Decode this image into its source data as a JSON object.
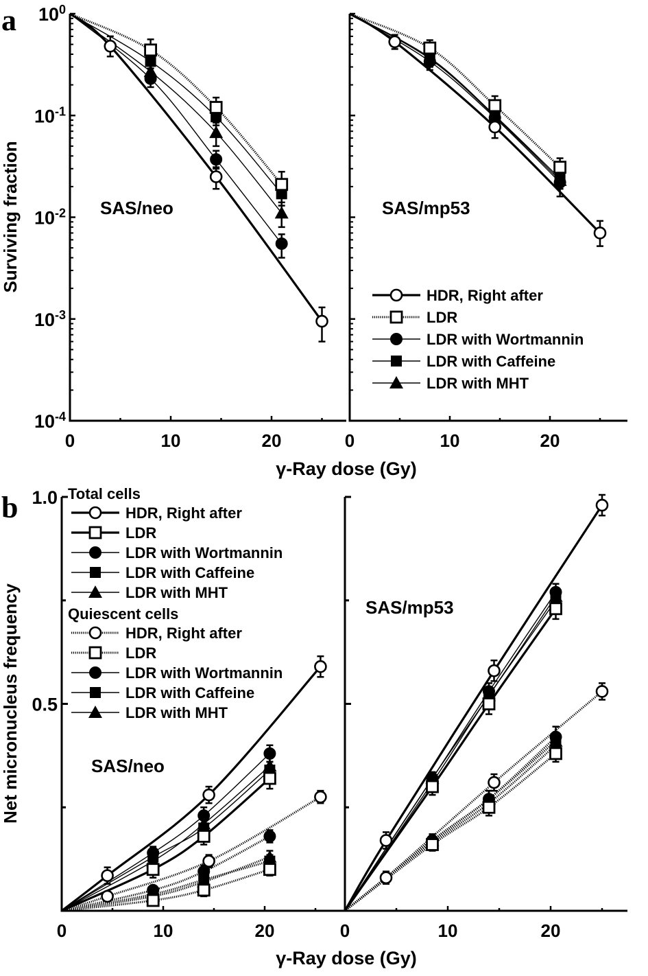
{
  "figure": {
    "panel_a_letter": "a",
    "panel_b_letter": "b"
  },
  "chart_data": [
    {
      "type": "line",
      "panel": "a",
      "subplot": "SAS/neo",
      "title": "SAS/neo",
      "xlabel": "γ-Ray dose (Gy)",
      "ylabel": "Surviving fraction",
      "yscale": "log",
      "xlim": [
        0,
        28
      ],
      "ylim": [
        0.0001,
        1
      ],
      "xticks": [
        "0",
        "10",
        "20"
      ],
      "yticks": [
        {
          "base": "10",
          "exp": "0"
        },
        {
          "base": "10",
          "exp": "-1"
        },
        {
          "base": "10",
          "exp": "-2"
        },
        {
          "base": "10",
          "exp": "-3"
        },
        {
          "base": "10",
          "exp": "-4"
        }
      ],
      "series": [
        {
          "name": "HDR, Right after",
          "marker": "open-circle",
          "line": "thick-solid",
          "x": [
            0,
            4,
            14.5,
            25
          ],
          "y": [
            1,
            0.48,
            0.025,
            0.00095
          ],
          "yerr_upper": [
            0,
            0.6,
            0.031,
            0.0013
          ],
          "yerr_lower": [
            0,
            0.38,
            0.019,
            0.0006
          ]
        },
        {
          "name": "LDR",
          "marker": "open-square",
          "line": "dotted",
          "x": [
            0,
            8,
            14.5,
            21
          ],
          "y": [
            1,
            0.44,
            0.12,
            0.021
          ],
          "yerr_upper": [
            0,
            0.56,
            0.15,
            0.028
          ],
          "yerr_lower": [
            0,
            0.36,
            0.1,
            0.017
          ]
        },
        {
          "name": "LDR with Wortmannin",
          "marker": "filled-circle",
          "line": "thin-solid",
          "x": [
            0,
            8,
            14.5,
            21
          ],
          "y": [
            1,
            0.23,
            0.037,
            0.0055
          ],
          "yerr_upper": [
            0,
            0.27,
            0.045,
            0.0068
          ],
          "yerr_lower": [
            0,
            0.19,
            0.03,
            0.004
          ]
        },
        {
          "name": "LDR with Caffeine",
          "marker": "filled-square",
          "line": "thin-solid",
          "x": [
            0,
            8,
            14.5,
            21
          ],
          "y": [
            1,
            0.34,
            0.097,
            0.017
          ],
          "yerr_upper": [
            0,
            0.4,
            0.12,
            0.022
          ],
          "yerr_lower": [
            0,
            0.29,
            0.08,
            0.013
          ]
        },
        {
          "name": "LDR with MHT",
          "marker": "filled-triangle",
          "line": "thin-solid",
          "x": [
            0,
            8,
            14.5,
            21
          ],
          "y": [
            1,
            0.27,
            0.068,
            0.011
          ],
          "yerr_upper": [
            0,
            0.32,
            0.085,
            0.014
          ],
          "yerr_lower": [
            0,
            0.23,
            0.05,
            0.008
          ]
        }
      ]
    },
    {
      "type": "line",
      "panel": "a",
      "subplot": "SAS/mp53",
      "title": "SAS/mp53",
      "xlabel": "γ-Ray dose (Gy)",
      "yscale": "log",
      "xlim": [
        0,
        28
      ],
      "ylim": [
        0.0001,
        1
      ],
      "xticks": [
        "0",
        "10",
        "20"
      ],
      "legend": {
        "position": "lower-center",
        "entries": [
          {
            "label": "HDR, Right after",
            "marker": "open-circle",
            "line": "thick-solid"
          },
          {
            "label": "LDR",
            "marker": "open-square",
            "line": "dotted"
          },
          {
            "label": "LDR with Wortmannin",
            "marker": "filled-circle",
            "line": "thin-solid"
          },
          {
            "label": "LDR with Caffeine",
            "marker": "filled-square",
            "line": "thin-solid"
          },
          {
            "label": "LDR with MHT",
            "marker": "filled-triangle",
            "line": "thin-solid"
          }
        ]
      },
      "series": [
        {
          "name": "HDR, Right after",
          "marker": "open-circle",
          "line": "thick-solid",
          "x": [
            0,
            4.5,
            14.5,
            25
          ],
          "y": [
            1,
            0.53,
            0.077,
            0.007
          ],
          "yerr_upper": [
            0,
            0.62,
            0.095,
            0.0092
          ],
          "yerr_lower": [
            0,
            0.45,
            0.06,
            0.0052
          ]
        },
        {
          "name": "LDR",
          "marker": "open-square",
          "line": "dotted",
          "x": [
            0,
            8,
            14.5,
            21
          ],
          "y": [
            1,
            0.46,
            0.125,
            0.031
          ],
          "yerr_upper": [
            0,
            0.55,
            0.155,
            0.038
          ],
          "yerr_lower": [
            0,
            0.38,
            0.1,
            0.025
          ]
        },
        {
          "name": "LDR with Wortmannin",
          "marker": "filled-circle",
          "line": "thin-solid",
          "x": [
            0,
            8,
            14.5,
            21
          ],
          "y": [
            1,
            0.34,
            0.095,
            0.022
          ],
          "yerr_upper": [
            0,
            0.4,
            0.11,
            0.026
          ],
          "yerr_lower": [
            0,
            0.28,
            0.08,
            0.016
          ]
        },
        {
          "name": "LDR with Caffeine",
          "marker": "filled-square",
          "line": "thin-solid",
          "x": [
            0,
            8,
            14.5,
            21
          ],
          "y": [
            1,
            0.37,
            0.1,
            0.024
          ],
          "yerr_upper": [
            0,
            0.43,
            0.12,
            0.028
          ],
          "yerr_lower": [
            0,
            0.31,
            0.085,
            0.02
          ]
        },
        {
          "name": "LDR with MHT",
          "marker": "filled-triangle",
          "line": "thin-solid",
          "x": [
            0,
            8,
            14.5,
            21
          ],
          "y": [
            1,
            0.36,
            0.098,
            0.023
          ],
          "yerr_upper": [
            0,
            0.42,
            0.115,
            0.027
          ],
          "yerr_lower": [
            0,
            0.3,
            0.082,
            0.019
          ]
        }
      ]
    },
    {
      "type": "line",
      "panel": "b",
      "subplot": "SAS/neo",
      "title": "SAS/neo",
      "xlabel": "γ-Ray dose (Gy)",
      "ylabel": "Net micronucleus frequency",
      "xlim": [
        0,
        28
      ],
      "ylim": [
        0,
        1.0
      ],
      "xticks": [
        "0",
        "10",
        "20"
      ],
      "yticks": [
        "1.0",
        "0.5"
      ],
      "legend": {
        "position": "top-left",
        "groups": [
          {
            "title": "Total cells",
            "entries": [
              {
                "label": "HDR, Right after",
                "marker": "open-circle",
                "line": "thick-solid"
              },
              {
                "label": "LDR",
                "marker": "open-square",
                "line": "thick-solid"
              },
              {
                "label": "LDR with Wortmannin",
                "marker": "filled-circle",
                "line": "thin-solid"
              },
              {
                "label": "LDR with Caffeine",
                "marker": "filled-square",
                "line": "thin-solid"
              },
              {
                "label": "LDR with MHT",
                "marker": "filled-triangle",
                "line": "thin-solid"
              }
            ]
          },
          {
            "title": "Quiescent cells",
            "entries": [
              {
                "label": "HDR, Right after",
                "marker": "open-circle",
                "line": "dotted"
              },
              {
                "label": "LDR",
                "marker": "open-square",
                "line": "dotted"
              },
              {
                "label": "LDR with Wortmannin",
                "marker": "filled-circle",
                "line": "thin-solid"
              },
              {
                "label": "LDR with Caffeine",
                "marker": "filled-square",
                "line": "thin-solid"
              },
              {
                "label": "LDR with MHT",
                "marker": "filled-triangle",
                "line": "thin-solid"
              }
            ]
          }
        ]
      },
      "series": [
        {
          "name": "Total cells - HDR, Right after",
          "marker": "open-circle",
          "line": "thick-solid",
          "x": [
            0,
            4.5,
            14.5,
            25.5
          ],
          "y": [
            0,
            0.085,
            0.28,
            0.59
          ],
          "err": [
            0,
            0.02,
            0.02,
            0.025
          ]
        },
        {
          "name": "Total cells - LDR",
          "marker": "open-square",
          "line": "thick-solid",
          "x": [
            0,
            9,
            14,
            20.5
          ],
          "y": [
            0,
            0.1,
            0.18,
            0.32
          ],
          "err": [
            0,
            0.02,
            0.02,
            0.025
          ]
        },
        {
          "name": "Total cells - LDR with Wortmannin",
          "marker": "filled-circle",
          "line": "thin-solid",
          "x": [
            0,
            9,
            14,
            20.5
          ],
          "y": [
            0,
            0.14,
            0.23,
            0.38
          ],
          "err": [
            0,
            0.015,
            0.02,
            0.02
          ]
        },
        {
          "name": "Total cells - LDR with Caffeine",
          "marker": "filled-square",
          "line": "thin-solid",
          "x": [
            0,
            9,
            14,
            20.5
          ],
          "y": [
            0,
            0.13,
            0.2,
            0.34
          ],
          "err": [
            0,
            0.015,
            0.02,
            0.02
          ]
        },
        {
          "name": "Total cells - LDR with MHT",
          "marker": "filled-triangle",
          "line": "thin-solid",
          "x": [
            0,
            9,
            14,
            20.5
          ],
          "y": [
            0,
            0.12,
            0.21,
            0.35
          ],
          "err": [
            0,
            0.015,
            0.02,
            0.02
          ]
        },
        {
          "name": "Quiescent cells - HDR, Right after",
          "marker": "open-circle",
          "line": "dotted",
          "x": [
            0,
            4.5,
            14.5,
            25.5
          ],
          "y": [
            0,
            0.035,
            0.12,
            0.275
          ],
          "err": [
            0,
            0.01,
            0.015,
            0.015
          ]
        },
        {
          "name": "Quiescent cells - LDR",
          "marker": "open-square",
          "line": "dotted",
          "x": [
            0,
            9,
            14,
            20.5
          ],
          "y": [
            0,
            0.025,
            0.05,
            0.1
          ],
          "err": [
            0,
            0.01,
            0.015,
            0.015
          ]
        },
        {
          "name": "Quiescent cells - LDR with Wortmannin",
          "marker": "filled-circle",
          "line": "dotted",
          "x": [
            0,
            9,
            14,
            20.5
          ],
          "y": [
            0,
            0.05,
            0.095,
            0.18
          ],
          "err": [
            0,
            0.01,
            0.015,
            0.015
          ]
        },
        {
          "name": "Quiescent cells - LDR with Caffeine",
          "marker": "filled-square",
          "line": "dotted",
          "x": [
            0,
            9,
            14,
            20.5
          ],
          "y": [
            0,
            0.04,
            0.075,
            0.12
          ],
          "err": [
            0,
            0.01,
            0.015,
            0.015
          ]
        },
        {
          "name": "Quiescent cells - LDR with MHT",
          "marker": "filled-triangle",
          "line": "dotted",
          "x": [
            0,
            9,
            14,
            20.5
          ],
          "y": [
            0,
            0.035,
            0.07,
            0.13
          ],
          "err": [
            0,
            0.01,
            0.015,
            0.015
          ]
        }
      ]
    },
    {
      "type": "line",
      "panel": "b",
      "subplot": "SAS/mp53",
      "title": "SAS/mp53",
      "xlabel": "γ-Ray dose (Gy)",
      "xlim": [
        0,
        28
      ],
      "ylim": [
        0,
        1.0
      ],
      "xticks": [
        "0",
        "10",
        "20"
      ],
      "series": [
        {
          "name": "Total cells - HDR, Right after",
          "marker": "open-circle",
          "line": "thick-solid",
          "x": [
            0,
            4,
            14.5,
            25
          ],
          "y": [
            0,
            0.17,
            0.58,
            0.98
          ],
          "err": [
            0,
            0.02,
            0.025,
            0.025
          ]
        },
        {
          "name": "Total cells - LDR",
          "marker": "open-square",
          "line": "thick-solid",
          "x": [
            0,
            8.5,
            14,
            20.5
          ],
          "y": [
            0,
            0.3,
            0.5,
            0.73
          ],
          "err": [
            0,
            0.02,
            0.025,
            0.025
          ]
        },
        {
          "name": "Total cells - LDR with Wortmannin",
          "marker": "filled-circle",
          "line": "thin-solid",
          "x": [
            0,
            8.5,
            14,
            20.5
          ],
          "y": [
            0,
            0.32,
            0.53,
            0.77
          ],
          "err": [
            0,
            0.015,
            0.02,
            0.02
          ]
        },
        {
          "name": "Total cells - LDR with Caffeine",
          "marker": "filled-square",
          "line": "thin-solid",
          "x": [
            0,
            8.5,
            14,
            20.5
          ],
          "y": [
            0,
            0.31,
            0.52,
            0.75
          ],
          "err": [
            0,
            0.015,
            0.02,
            0.02
          ]
        },
        {
          "name": "Total cells - LDR with MHT",
          "marker": "filled-triangle",
          "line": "thin-solid",
          "x": [
            0,
            8.5,
            14,
            20.5
          ],
          "y": [
            0,
            0.32,
            0.52,
            0.76
          ],
          "err": [
            0,
            0.015,
            0.02,
            0.02
          ]
        },
        {
          "name": "Quiescent cells - HDR, Right after",
          "marker": "open-circle",
          "line": "dotted",
          "x": [
            0,
            4,
            14.5,
            25
          ],
          "y": [
            0,
            0.08,
            0.31,
            0.53
          ],
          "err": [
            0,
            0.015,
            0.02,
            0.02
          ]
        },
        {
          "name": "Quiescent cells - LDR",
          "marker": "open-square",
          "line": "dotted",
          "x": [
            0,
            8.5,
            14,
            20.5
          ],
          "y": [
            0,
            0.16,
            0.25,
            0.38
          ],
          "err": [
            0,
            0.015,
            0.02,
            0.02
          ]
        },
        {
          "name": "Quiescent cells - LDR with Wortmannin",
          "marker": "filled-circle",
          "line": "dotted",
          "x": [
            0,
            8.5,
            14,
            20.5
          ],
          "y": [
            0,
            0.17,
            0.27,
            0.42
          ],
          "err": [
            0,
            0.015,
            0.02,
            0.025
          ]
        },
        {
          "name": "Quiescent cells - LDR with Caffeine",
          "marker": "filled-square",
          "line": "dotted",
          "x": [
            0,
            8.5,
            14,
            20.5
          ],
          "y": [
            0,
            0.165,
            0.26,
            0.4
          ],
          "err": [
            0,
            0.015,
            0.02,
            0.02
          ]
        },
        {
          "name": "Quiescent cells - LDR with MHT",
          "marker": "filled-triangle",
          "line": "dotted",
          "x": [
            0,
            8.5,
            14,
            20.5
          ],
          "y": [
            0,
            0.17,
            0.27,
            0.41
          ],
          "err": [
            0,
            0.015,
            0.02,
            0.02
          ]
        }
      ]
    }
  ]
}
